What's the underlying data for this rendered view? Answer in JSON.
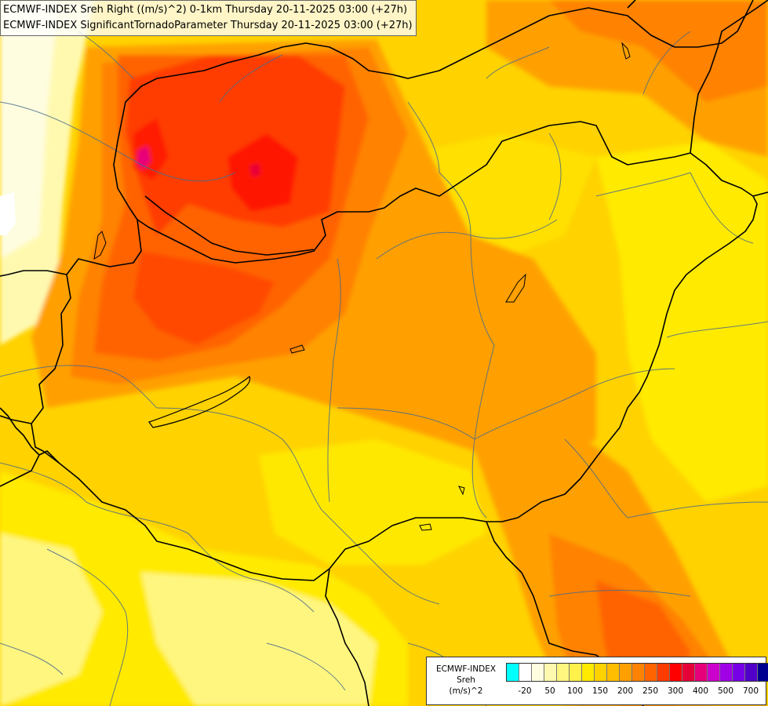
{
  "title": {
    "line1": "ECMWF-INDEX Sreh Right ((m/s)^2) 0-1km Thursday 20-11-2025 03:00 (+27h)",
    "line2": "ECMWF-INDEX SignificantTornadoParameter Thursday 20-11-2025 03:00 (+27h)"
  },
  "legend": {
    "source": "ECMWF-INDEX",
    "variable": "Sreh",
    "unit": "(m/s)^2",
    "swatch_colors": [
      "#00ffff",
      "#ffffff",
      "#fffde0",
      "#fff9b0",
      "#fff680",
      "#fff14a",
      "#ffea00",
      "#ffd200",
      "#ffbe00",
      "#ffa000",
      "#ff8200",
      "#ff6400",
      "#ff3c00",
      "#ff0000",
      "#e60038",
      "#e6007a",
      "#cc00cc",
      "#a000e6",
      "#7800e6",
      "#5000c8",
      "#000090"
    ],
    "ticks": [
      "-20",
      "50",
      "100",
      "150",
      "200",
      "250",
      "300",
      "400",
      "500",
      "700"
    ]
  },
  "palette": {
    "sreh_50": "#fff680",
    "sreh_100": "#ffea00",
    "sreh_150": "#ffd200",
    "sreh_200": "#ffa000",
    "sreh_250": "#ff7800",
    "sreh_300": "#ff3c00",
    "sreh_400": "#e6007a",
    "border_color": "#000000",
    "region_line_color": "#4a6a8a"
  }
}
